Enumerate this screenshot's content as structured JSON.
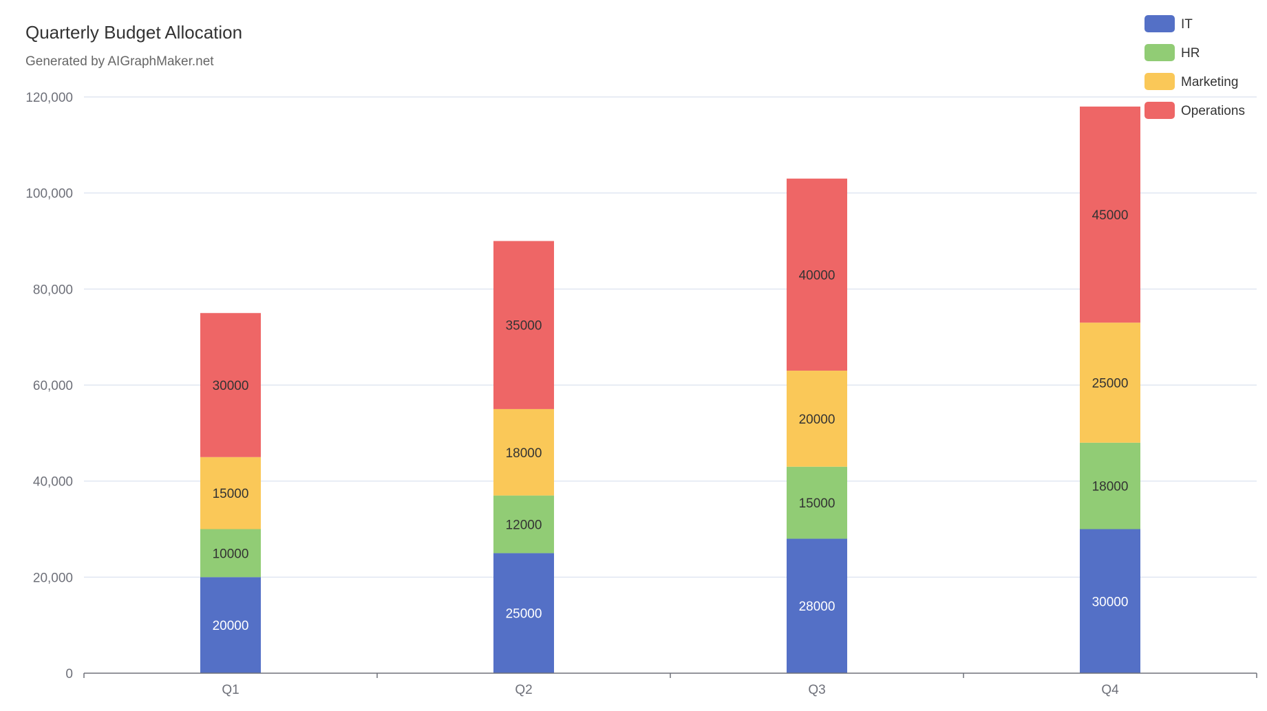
{
  "chart_data": {
    "type": "bar",
    "stacked": true,
    "title": "Quarterly Budget Allocation",
    "subtitle": "Generated by AIGraphMaker.net",
    "categories": [
      "Q1",
      "Q2",
      "Q3",
      "Q4"
    ],
    "series": [
      {
        "name": "IT",
        "color": "#5470c6",
        "label_color": "#ffffff",
        "values": [
          20000,
          25000,
          28000,
          30000
        ]
      },
      {
        "name": "HR",
        "color": "#91cc75",
        "label_color": "#333333",
        "values": [
          10000,
          12000,
          15000,
          18000
        ]
      },
      {
        "name": "Marketing",
        "color": "#fac858",
        "label_color": "#333333",
        "values": [
          15000,
          18000,
          20000,
          25000
        ]
      },
      {
        "name": "Operations",
        "color": "#ee6666",
        "label_color": "#333333",
        "values": [
          30000,
          35000,
          40000,
          45000
        ]
      }
    ],
    "ylim": [
      0,
      120000
    ],
    "yticks": [
      0,
      20000,
      40000,
      60000,
      80000,
      100000,
      120000
    ],
    "ytick_labels": [
      "0",
      "20,000",
      "40,000",
      "60,000",
      "80,000",
      "100,000",
      "120,000"
    ],
    "xlabel": "",
    "ylabel": "",
    "grid": true,
    "legend_position": "top-right",
    "data_labels": true
  }
}
